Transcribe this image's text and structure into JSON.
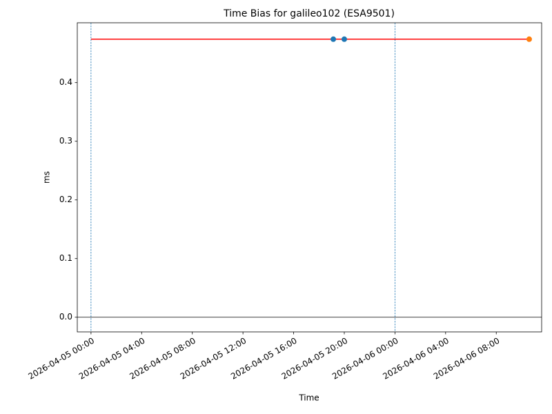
{
  "chart_data": {
    "type": "line",
    "title": "Time Bias for galileo102 (ESA9501)",
    "xlabel": "Time",
    "ylabel": "ms",
    "xlim": [
      "2026-04-04 22:55",
      "2026-04-06 11:35"
    ],
    "xticks": [
      "2026-04-05 00:00",
      "2026-04-05 04:00",
      "2026-04-05 08:00",
      "2026-04-05 12:00",
      "2026-04-05 16:00",
      "2026-04-05 20:00",
      "2026-04-06 00:00",
      "2026-04-06 04:00",
      "2026-04-06 08:00"
    ],
    "ylim": [
      -0.025,
      0.502
    ],
    "yticks": [
      {
        "value": 0,
        "label": "0.0"
      },
      0.1,
      0.2,
      0.3,
      0.4
    ],
    "series": [
      {
        "color": "#ff0000",
        "line": true,
        "marker": false,
        "x": [
          "2026-04-05 00:00",
          "2026-04-06 10:36"
        ],
        "values": [
          0.474,
          0.474
        ]
      },
      {
        "color": "#1f77b4",
        "line": false,
        "marker": true,
        "x": [
          "2026-04-05 19:08",
          "2026-04-05 20:00"
        ],
        "values": [
          0.474,
          0.474
        ]
      },
      {
        "color": "#ff7f0e",
        "line": false,
        "marker": true,
        "x": [
          "2026-04-06 10:36"
        ],
        "values": [
          0.474
        ]
      }
    ],
    "vlines": [
      "2026-04-05 00:00",
      "2026-04-06 00:00"
    ],
    "vline_color": "#1f77b4",
    "hline": 0
  }
}
